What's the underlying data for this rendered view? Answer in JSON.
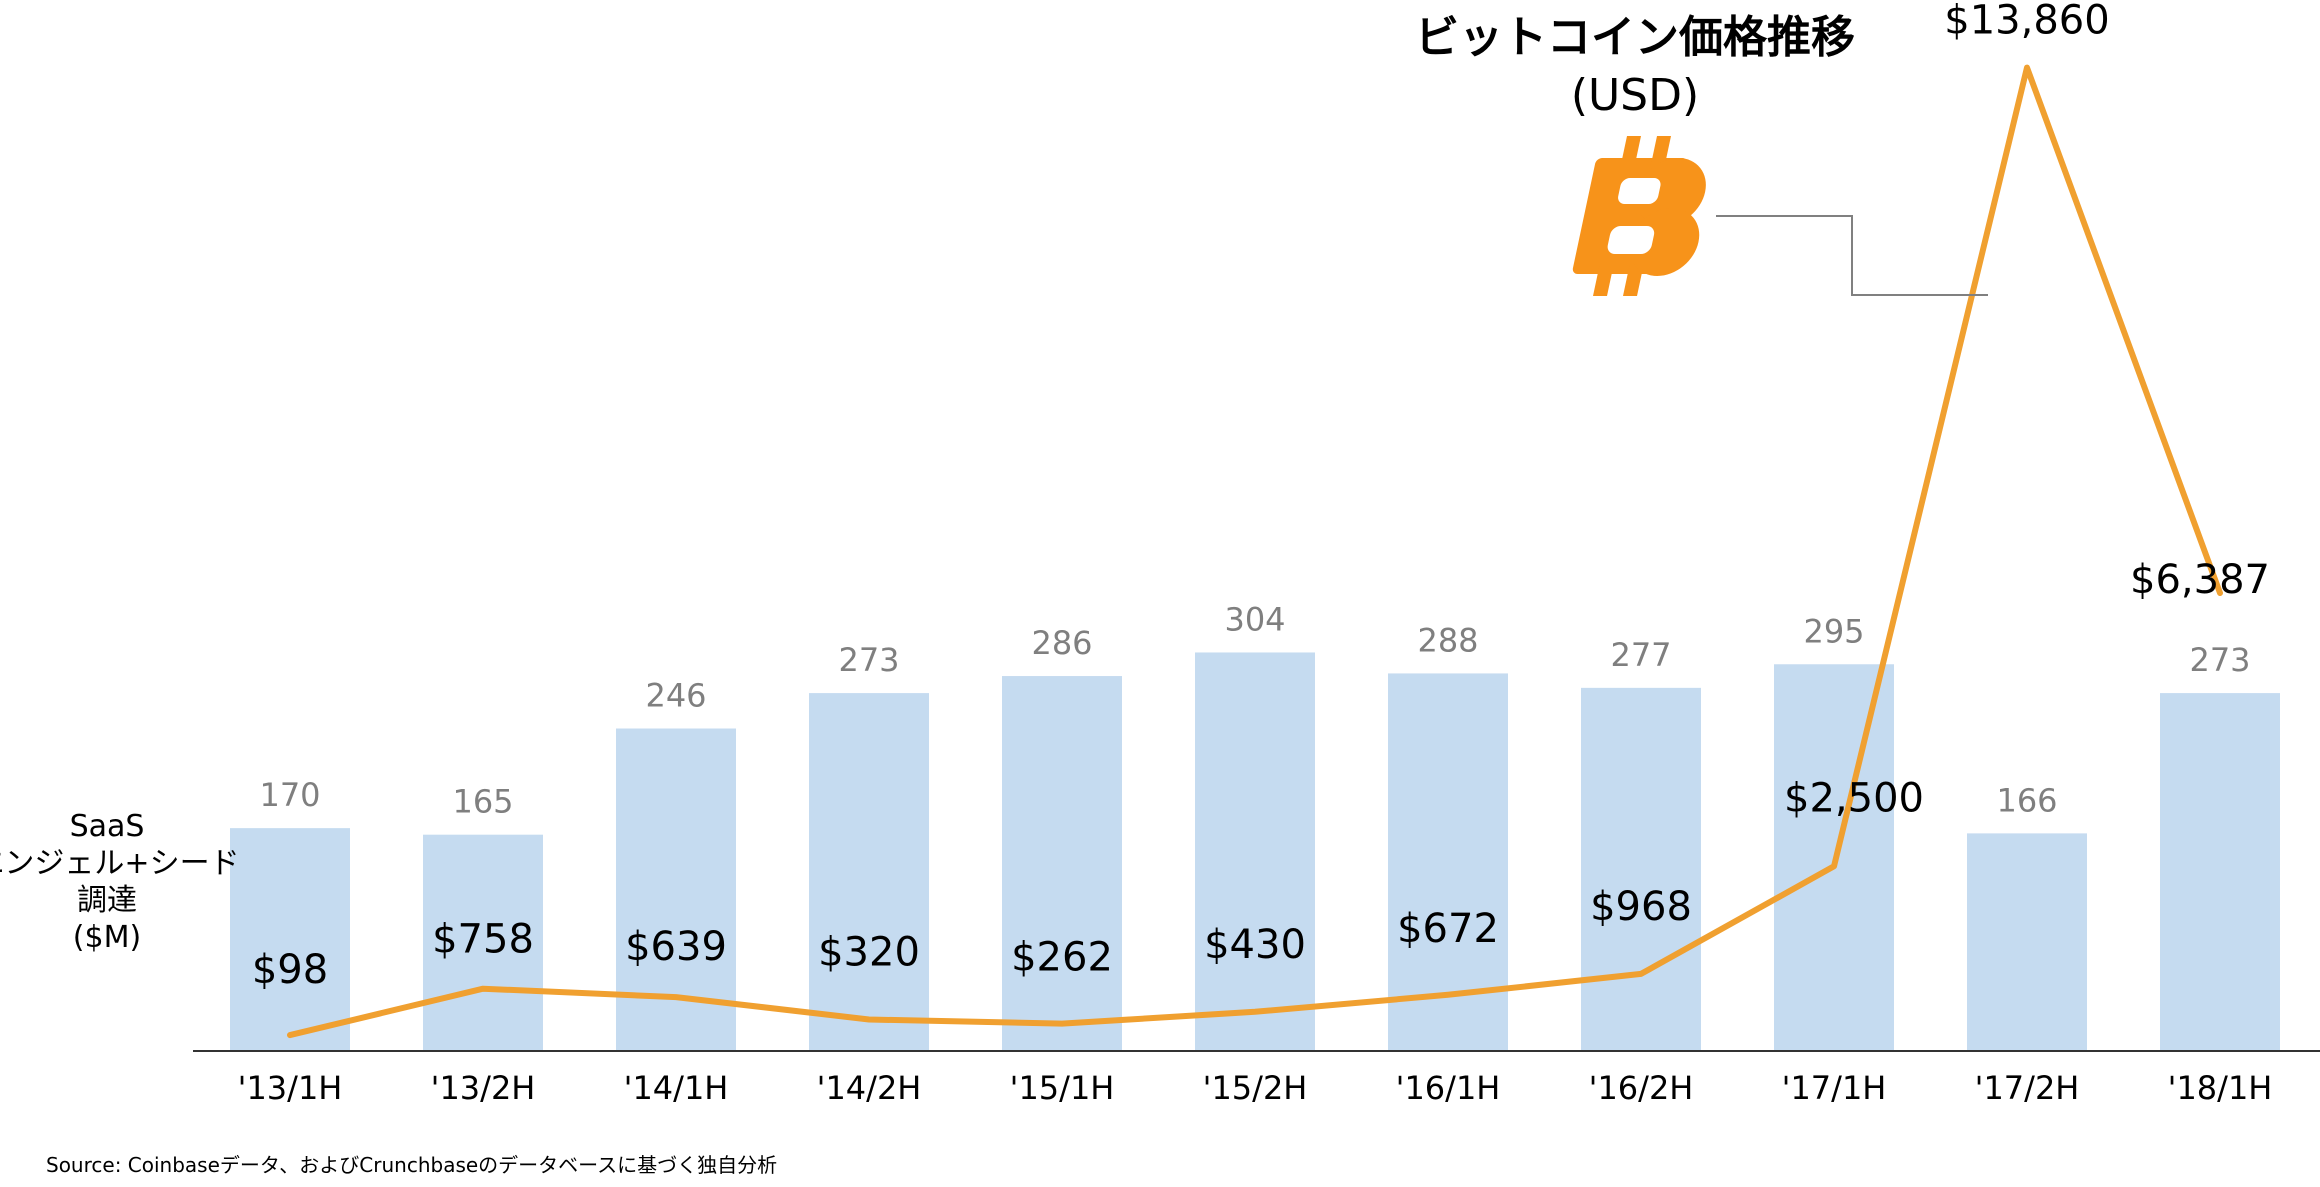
{
  "chart_data": {
    "type": "bar",
    "categories": [
      "'13/1H",
      "'13/2H",
      "'14/1H",
      "'14/2H",
      "'15/1H",
      "'15/2H",
      "'16/1H",
      "'16/2H",
      "'17/1H",
      "'17/2H",
      "'18/1H"
    ],
    "series": [
      {
        "type": "bar",
        "values": [
          170,
          165,
          246,
          273,
          286,
          304,
          288,
          277,
          295,
          166,
          273
        ],
        "labels": [
          "170",
          "165",
          "246",
          "273",
          "286",
          "304",
          "288",
          "277",
          "295",
          "166",
          "273"
        ],
        "color": "#c5dbf0"
      },
      {
        "type": "line",
        "name": "ビットコイン価格推移 (USD)",
        "values": [
          98,
          758,
          639,
          320,
          262,
          430,
          672,
          968,
          2500,
          13860,
          6387
        ],
        "labels": [
          "$98",
          "$758",
          "$639",
          "$320",
          "$262",
          "$430",
          "$672",
          "$968",
          "$2,500",
          "$13,860",
          "$6,387"
        ],
        "color": "#f0a030"
      }
    ],
    "ylabel_lines": [
      "SaaS",
      "エンジェル+シード",
      "調達",
      "($M)"
    ],
    "line_title_lines": [
      "ビットコイン価格推移",
      "(USD)"
    ],
    "source": "Source: Coinbaseデータ、およびCrunchbaseのデータベースに基づく独自分析"
  },
  "icon": {
    "name": "bitcoin-icon",
    "color": "#f7931a"
  },
  "colors": {
    "axis": "#333333",
    "connector": "#808080",
    "bar_label": "#7f7f7f"
  }
}
